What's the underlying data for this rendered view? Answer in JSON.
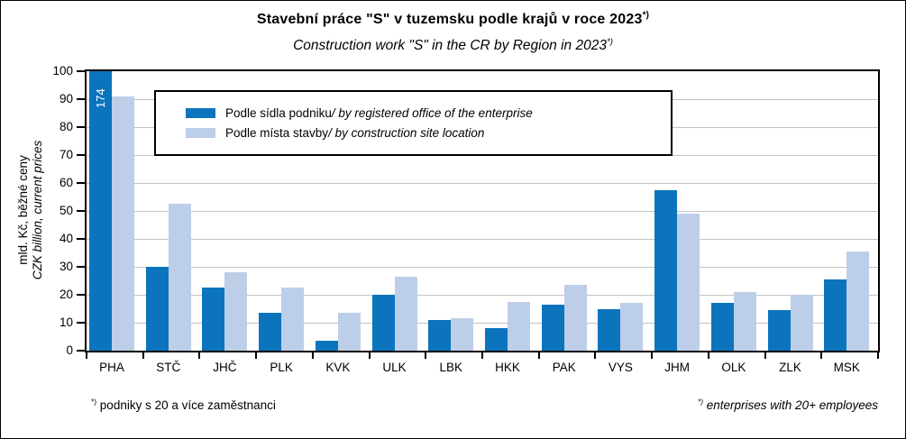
{
  "title": {
    "text": "Stavební práce \"S\" v tuzemsku podle krajů v roce 2023",
    "sup": "*)",
    "subtitle": "Construction work \"S\" in the CR by Region in 2023",
    "subtitle_sup": "*)"
  },
  "y_axis": {
    "label_cz": "mld. Kč, běžné ceny",
    "label_en": "CZK billion, current prices",
    "min": 0,
    "max": 100,
    "step": 10
  },
  "legend": {
    "items": [
      {
        "label_cz": "Podle sídla podniku ",
        "label_en": "/ by registered office of the enterprise",
        "color": "#0B74BC"
      },
      {
        "label_cz": "Podle místa stavby ",
        "label_en": "/ by construction site location",
        "color": "#BDCEE8"
      }
    ]
  },
  "footnotes": {
    "left_sup": "*)",
    "left_text": " podniky s 20 a více zaměstnanci",
    "right_sup": "*)",
    "right_text": " enterprises with 20+ employees"
  },
  "colors": {
    "series_office": "#0B74BC",
    "series_site": "#BDCEE8",
    "gridline": "#C3C3C3",
    "axis": "#000000",
    "overflow_label_text": "#FFFFFF"
  },
  "chart_data": {
    "type": "bar",
    "title": "Stavební práce \"S\" v tuzemsku podle krajů v roce 2023*)",
    "subtitle": "Construction work \"S\" in the CR by Region in 2023*)",
    "ylabel": "mld. Kč, běžné ceny / CZK billion, current prices",
    "xlabel": "",
    "ylim": [
      0,
      100
    ],
    "ytick_step": 10,
    "grid": "horizontal",
    "legend_position": "inside-top-left",
    "categories": [
      "PHA",
      "STČ",
      "JHČ",
      "PLK",
      "KVK",
      "ULK",
      "LBK",
      "HKK",
      "PAK",
      "VYS",
      "JHM",
      "OLK",
      "ZLK",
      "MSK"
    ],
    "series": [
      {
        "name": "Podle sídla podniku / by registered office of the enterprise",
        "color": "#0B74BC",
        "values": [
          174,
          30,
          22.5,
          13.5,
          3.5,
          20,
          11,
          8,
          16.5,
          15,
          57.5,
          17,
          14.5,
          25.5
        ]
      },
      {
        "name": "Podle místa stavby / by construction site location",
        "color": "#BDCEE8",
        "values": [
          91,
          52.5,
          28,
          22.5,
          13.5,
          26.5,
          11.5,
          17.5,
          23.5,
          17,
          49,
          21,
          20,
          35.5
        ]
      }
    ],
    "annotations": [
      {
        "category": "PHA",
        "series": 0,
        "text": "174",
        "note": "bar clipped at axis max, value printed vertically in white"
      }
    ]
  }
}
